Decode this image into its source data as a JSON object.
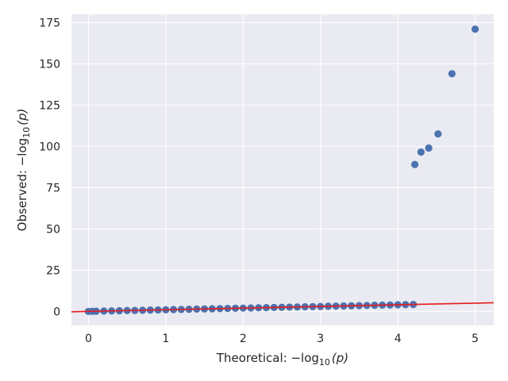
{
  "chart_data": {
    "type": "scatter",
    "title": "",
    "xlabel": {
      "prefix": "Theoretical: −log",
      "sub": "10",
      "suffix": "(p)"
    },
    "ylabel": {
      "prefix": "Observed: −log",
      "sub": "10",
      "suffix": "(p)"
    },
    "xlim": [
      -0.22,
      5.24
    ],
    "ylim": [
      -8.5,
      180
    ],
    "x_ticks": [
      0,
      1,
      2,
      3,
      4,
      5
    ],
    "y_ticks": [
      0,
      25,
      50,
      75,
      100,
      125,
      150,
      175
    ],
    "grid": true,
    "legend": "none",
    "colors": {
      "background": "#eaeaf2",
      "points": "#4c72b0",
      "reference_line": "#e8191c"
    },
    "series": [
      {
        "kind": "points",
        "x": [
          0.0,
          0.05,
          0.1,
          0.2,
          0.3,
          0.4,
          0.5,
          0.6,
          0.7,
          0.8,
          0.9,
          1.0,
          1.1,
          1.2,
          1.3,
          1.4,
          1.5,
          1.6,
          1.7,
          1.8,
          1.9,
          2.0,
          2.1,
          2.2,
          2.3,
          2.4,
          2.5,
          2.6,
          2.7,
          2.8,
          2.9,
          3.0,
          3.1,
          3.2,
          3.3,
          3.4,
          3.5,
          3.6,
          3.7,
          3.8,
          3.9,
          4.0,
          4.1,
          4.2,
          4.22,
          4.3,
          4.4,
          4.52,
          4.7,
          5.0
        ],
        "y": [
          0.0,
          0.05,
          0.1,
          0.2,
          0.3,
          0.4,
          0.5,
          0.6,
          0.7,
          0.8,
          0.9,
          1.0,
          1.1,
          1.2,
          1.3,
          1.4,
          1.5,
          1.6,
          1.7,
          1.8,
          1.9,
          2.0,
          2.1,
          2.2,
          2.3,
          2.4,
          2.5,
          2.6,
          2.7,
          2.8,
          2.9,
          3.0,
          3.1,
          3.2,
          3.3,
          3.4,
          3.5,
          3.6,
          3.7,
          3.8,
          3.9,
          4.0,
          4.1,
          4.2,
          89.0,
          96.5,
          99.0,
          107.5,
          144.0,
          171.0
        ]
      },
      {
        "kind": "reference-line",
        "x": [
          -0.22,
          5.24
        ],
        "y": [
          -0.22,
          5.24
        ]
      }
    ]
  }
}
